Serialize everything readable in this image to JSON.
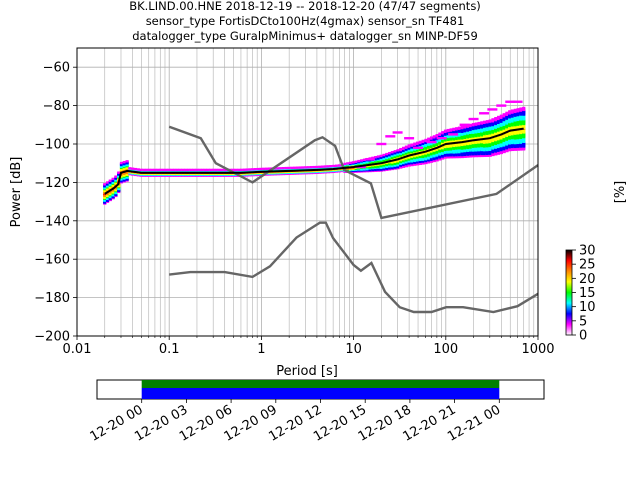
{
  "title_lines": [
    "BK.LIND.00.HNE   2018-12-19 -- 2018-12-20  (47/47 segments)",
    "sensor_type FortisDCto100Hz(4gmax) sensor_sn TF481",
    "datalogger_type GuralpMinimus+ datalogger_sn MINP-DF59"
  ],
  "chart_data": {
    "type": "line",
    "subtype": "ppsd",
    "xlabel": "Period [s]",
    "ylabel": "Power [dB]",
    "x_scale": "log",
    "xlim": [
      0.01,
      1000
    ],
    "ylim": [
      -200,
      -50
    ],
    "x_ticks": [
      {
        "value": 0.01,
        "label": "0.01"
      },
      {
        "value": 0.1,
        "label": "0.1"
      },
      {
        "value": 1,
        "label": "1"
      },
      {
        "value": 10,
        "label": "10"
      },
      {
        "value": 100,
        "label": "100"
      },
      {
        "value": 1000,
        "label": "1000"
      }
    ],
    "y_ticks": [
      {
        "value": -200,
        "label": "−200"
      },
      {
        "value": -180,
        "label": "−180"
      },
      {
        "value": -160,
        "label": "−160"
      },
      {
        "value": -140,
        "label": "−140"
      },
      {
        "value": -120,
        "label": "−120"
      },
      {
        "value": -100,
        "label": "−100"
      },
      {
        "value": -80,
        "label": "−80"
      },
      {
        "value": -60,
        "label": "−60"
      }
    ],
    "grid": true,
    "noise_models": [
      {
        "color": "#666666",
        "points": [
          [
            0.1,
            -91
          ],
          [
            0.22,
            -97
          ],
          [
            0.32,
            -110
          ],
          [
            0.8,
            -120
          ],
          [
            3.8,
            -98
          ],
          [
            4.6,
            -96.5
          ],
          [
            6.3,
            -101
          ],
          [
            7.9,
            -113.5
          ],
          [
            15.4,
            -120.5
          ],
          [
            20,
            -138.5
          ],
          [
            354.8,
            -126
          ],
          [
            1000,
            -111
          ]
        ]
      },
      {
        "color": "#666666",
        "points": [
          [
            0.1,
            -168
          ],
          [
            0.17,
            -166.7
          ],
          [
            0.4,
            -166.7
          ],
          [
            0.8,
            -169.2
          ],
          [
            1.24,
            -163.7
          ],
          [
            2.4,
            -148.7
          ],
          [
            4.3,
            -141
          ],
          [
            5,
            -141
          ],
          [
            6,
            -149
          ],
          [
            10,
            -163
          ],
          [
            12,
            -166
          ],
          [
            15.6,
            -162
          ],
          [
            21.9,
            -177
          ],
          [
            31.6,
            -185
          ],
          [
            45,
            -187.5
          ],
          [
            70,
            -187.5
          ],
          [
            101,
            -185
          ],
          [
            154,
            -185
          ],
          [
            328,
            -187.5
          ],
          [
            600,
            -184.5
          ],
          [
            1000,
            -178
          ]
        ]
      }
    ],
    "mean_curve": {
      "color": "#000000",
      "points": [
        [
          0.02,
          -126
        ],
        [
          0.025,
          -123
        ],
        [
          0.028,
          -121
        ],
        [
          0.03,
          -115
        ],
        [
          0.035,
          -114
        ],
        [
          0.05,
          -115
        ],
        [
          0.1,
          -115
        ],
        [
          0.3,
          -115
        ],
        [
          0.6,
          -115
        ],
        [
          1,
          -114.5
        ],
        [
          2,
          -114
        ],
        [
          4,
          -113.5
        ],
        [
          6,
          -113
        ],
        [
          10,
          -112
        ],
        [
          20,
          -110
        ],
        [
          30,
          -108
        ],
        [
          40,
          -106
        ],
        [
          60,
          -104
        ],
        [
          80,
          -102
        ],
        [
          100,
          -100
        ],
        [
          150,
          -99
        ],
        [
          200,
          -98
        ],
        [
          300,
          -97
        ],
        [
          400,
          -95
        ],
        [
          500,
          -93
        ],
        [
          700,
          -92
        ]
      ]
    },
    "colorbar": {
      "label": "[%]",
      "range": [
        0,
        30
      ],
      "ticks": [
        {
          "value": 0,
          "label": "0"
        },
        {
          "value": 5,
          "label": "5"
        },
        {
          "value": 10,
          "label": "10"
        },
        {
          "value": 15,
          "label": "15"
        },
        {
          "value": 20,
          "label": "20"
        },
        {
          "value": 25,
          "label": "25"
        },
        {
          "value": 30,
          "label": "30"
        }
      ],
      "colors": [
        "#ffffff",
        "#ff00ff",
        "#0000ff",
        "#00ffff",
        "#00ff00",
        "#ffff00",
        "#ff8800",
        "#ff0000",
        "#000000"
      ]
    },
    "timeline": {
      "range_hours": [
        -3,
        27
      ],
      "coverage_hours": [
        0,
        24
      ],
      "tick_hours": [
        0,
        3,
        6,
        9,
        12,
        15,
        18,
        21,
        24
      ],
      "tick_labels": [
        "12-20 00",
        "12-20 03",
        "12-20 06",
        "12-20 09",
        "12-20 12",
        "12-20 15",
        "12-20 18",
        "12-20 21",
        "12-21 00"
      ],
      "colors": {
        "data": "#0000ff",
        "processed": "#008000"
      }
    }
  }
}
